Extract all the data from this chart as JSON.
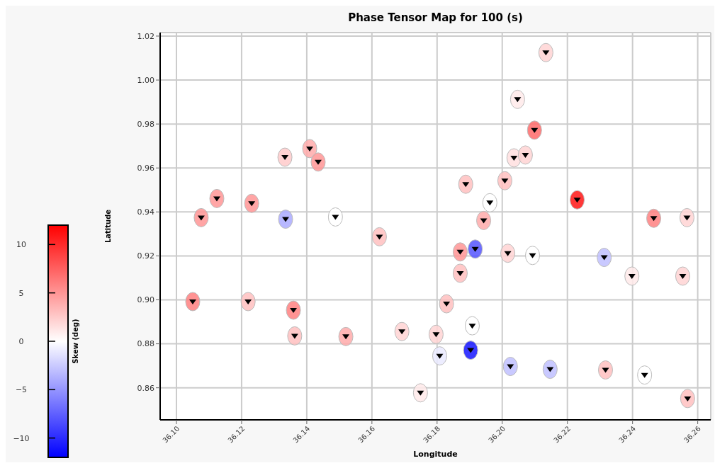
{
  "chart_data": {
    "type": "scatter",
    "title": "Phase Tensor Map for 100 (s)",
    "xlabel": "Longitude",
    "ylabel": "Latitude",
    "clabel": "Skew (deg)",
    "xlim": [
      36.095,
      36.264
    ],
    "ylim": [
      0.8454,
      1.0216
    ],
    "xticks": [
      {
        "value": 36.1,
        "label": "36.10"
      },
      {
        "value": 36.12,
        "label": "36.12"
      },
      {
        "value": 36.14,
        "label": "36.14"
      },
      {
        "value": 36.16,
        "label": "36.16"
      },
      {
        "value": 36.18,
        "label": "36.18"
      },
      {
        "value": 36.2,
        "label": "36.20"
      },
      {
        "value": 36.22,
        "label": "36.22"
      },
      {
        "value": 36.24,
        "label": "36.24"
      },
      {
        "value": 36.26,
        "label": "36.26"
      }
    ],
    "yticks": [
      0.86,
      0.88,
      {
        "value": 0.9,
        "label": "0.90"
      },
      0.92,
      0.94,
      0.96,
      0.98,
      {
        "value": 1.0,
        "label": "1.00"
      },
      1.02
    ],
    "clim": [
      -12,
      12
    ],
    "cticks": [
      -10,
      -5,
      0,
      5,
      10
    ],
    "grid": true,
    "x": [
      36.2134,
      36.2047,
      36.2099,
      36.2036,
      36.2071,
      36.1888,
      36.2008,
      36.1962,
      36.223,
      36.1943,
      36.2465,
      36.2567,
      36.1333,
      36.1409,
      36.1435,
      36.1124,
      36.1231,
      36.1076,
      36.1335,
      36.1488,
      36.1623,
      36.1871,
      36.1917,
      36.2017,
      36.2093,
      36.2313,
      36.2398,
      36.2554,
      36.1871,
      36.1829,
      36.105,
      36.122,
      36.1359,
      36.1363,
      36.152,
      36.1692,
      36.1797,
      36.1908,
      36.1808,
      36.1903,
      36.2025,
      36.2147,
      36.2317,
      36.2437,
      36.2569,
      36.1749
    ],
    "values": [
      1.0125,
      0.9912,
      0.9772,
      0.9646,
      0.9659,
      0.9526,
      0.9542,
      0.9442,
      0.9455,
      0.9361,
      0.9371,
      0.9374,
      0.9649,
      0.9688,
      0.9627,
      0.9461,
      0.9439,
      0.9374,
      0.9367,
      0.9377,
      0.9287,
      0.9218,
      0.9231,
      0.9212,
      0.9202,
      0.9193,
      0.9108,
      0.9108,
      0.9121,
      0.8982,
      0.8992,
      0.8992,
      0.8953,
      0.8836,
      0.8833,
      0.8856,
      0.8843,
      0.8882,
      0.8745,
      0.8771,
      0.8697,
      0.8684,
      0.8681,
      0.8658,
      0.8551,
      0.8577
    ],
    "cvalues": [
      2,
      1,
      7,
      1.5,
      2,
      3,
      3,
      0,
      11,
      4,
      6,
      2,
      2.5,
      4,
      5,
      5,
      5,
      5,
      -4,
      0,
      3,
      5,
      -8,
      2,
      0,
      -3,
      1,
      2,
      3,
      3,
      6,
      3,
      6,
      3,
      4,
      2,
      2,
      0,
      -1,
      -11,
      -3,
      -3,
      3,
      0,
      3,
      1
    ]
  }
}
